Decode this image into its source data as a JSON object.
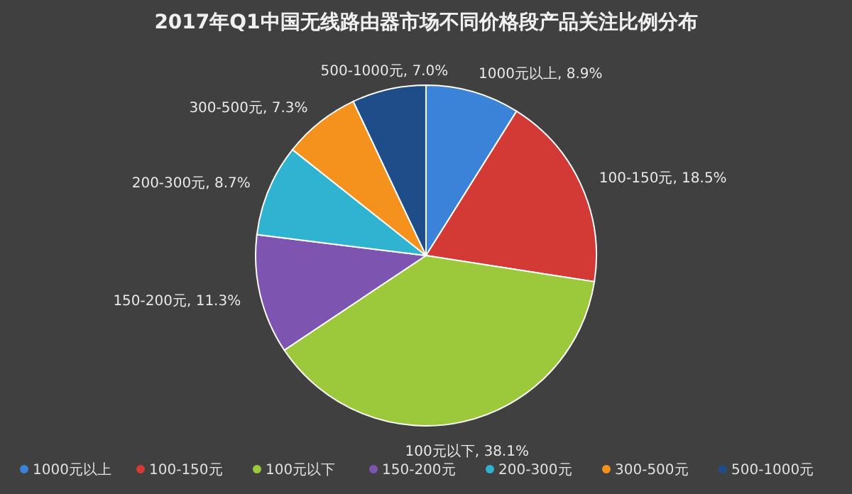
{
  "chart_data": {
    "type": "pie",
    "title": "2017年Q1中国无线路由器市场不同价格段产品关注比例分布",
    "categories": [
      "1000元以上",
      "100-150元",
      "100元以下",
      "150-200元",
      "200-300元",
      "300-500元",
      "500-1000元"
    ],
    "values": [
      8.9,
      18.5,
      38.1,
      11.3,
      8.7,
      7.3,
      7.0
    ],
    "colors": [
      "#3a83d8",
      "#d33a36",
      "#9cc83c",
      "#7d55b0",
      "#2fb3d1",
      "#f5921e",
      "#1f4d8a"
    ],
    "value_labels": [
      "1000元以上, 8.9%",
      "100-150元, 18.5%",
      "100元以下, 38.1%",
      "150-200元, 11.3%",
      "200-300元, 8.7%",
      "300-500元, 7.3%",
      "500-1000元, 7.0%"
    ],
    "legend": "bottom"
  }
}
